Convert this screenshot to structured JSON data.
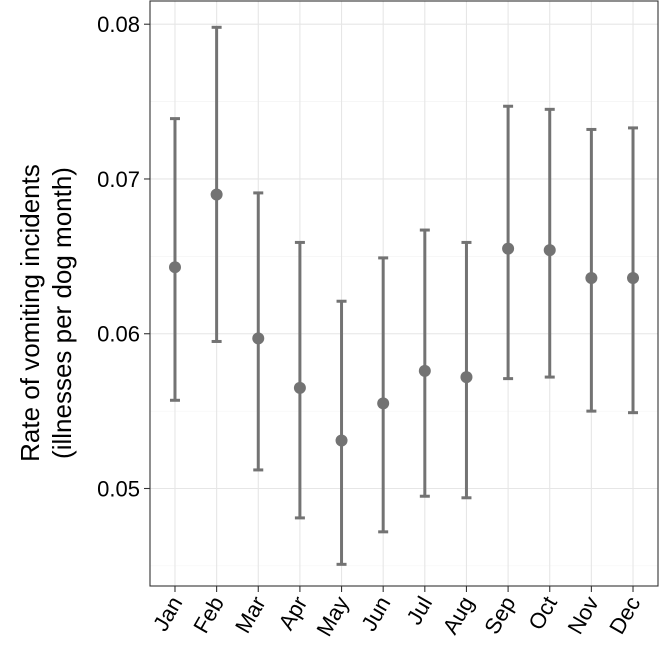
{
  "chart_data": {
    "type": "scatter",
    "variant": "point-with-error-bars",
    "title": "",
    "xlabel": "",
    "ylabel_lines": [
      "Rate of vomiting incidents",
      "(illnesses per dog month)"
    ],
    "categories": [
      "Jan",
      "Feb",
      "Mar",
      "Apr",
      "May",
      "Jun",
      "Jul",
      "Aug",
      "Sep",
      "Oct",
      "Nov",
      "Dec"
    ],
    "values": [
      0.0643,
      0.069,
      0.0597,
      0.0565,
      0.0531,
      0.0555,
      0.0576,
      0.0572,
      0.0655,
      0.0654,
      0.0636,
      0.0636
    ],
    "lower": [
      0.0557,
      0.0595,
      0.0512,
      0.0481,
      0.0451,
      0.0472,
      0.0495,
      0.0494,
      0.0571,
      0.0572,
      0.055,
      0.0549
    ],
    "upper": [
      0.0739,
      0.0798,
      0.0691,
      0.0659,
      0.0621,
      0.0649,
      0.0667,
      0.0659,
      0.0747,
      0.0745,
      0.0732,
      0.0733
    ],
    "ylim": [
      0.0437,
      0.0815
    ],
    "yticks": [
      0.05,
      0.06,
      0.07,
      0.08
    ],
    "ytick_labels": [
      "0.05",
      "0.06",
      "0.07",
      "0.08"
    ],
    "grid": true,
    "legend": "none",
    "colors": {
      "mark": "#737373",
      "grid": "#e6e6e6",
      "border": "#333333"
    }
  }
}
